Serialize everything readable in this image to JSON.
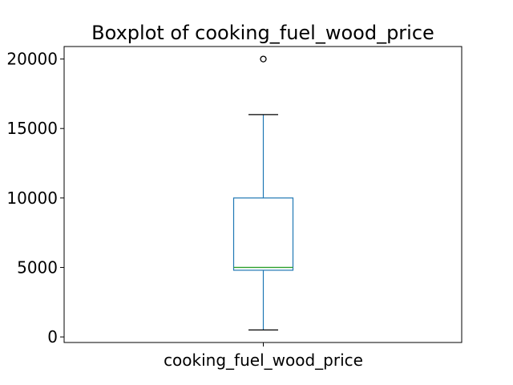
{
  "chart_data": {
    "type": "box",
    "title": "Boxplot of cooking_fuel_wood_price",
    "xlabel": "",
    "ylabel": "",
    "categories": [
      "cooking_fuel_wood_price"
    ],
    "box": {
      "whisker_low": 500,
      "q1": 4800,
      "median": 5000,
      "q3": 10000,
      "whisker_high": 16000,
      "outliers": [
        20000
      ]
    },
    "ylim": [
      -400,
      20900
    ],
    "yticks": [
      0,
      5000,
      10000,
      15000,
      20000
    ],
    "ytick_labels": [
      "0",
      "5000",
      "10000",
      "15000",
      "20000"
    ],
    "grid": false,
    "colors": {
      "box": "#1f77b4",
      "median": "#2ca02c",
      "axes": "#000000"
    }
  }
}
